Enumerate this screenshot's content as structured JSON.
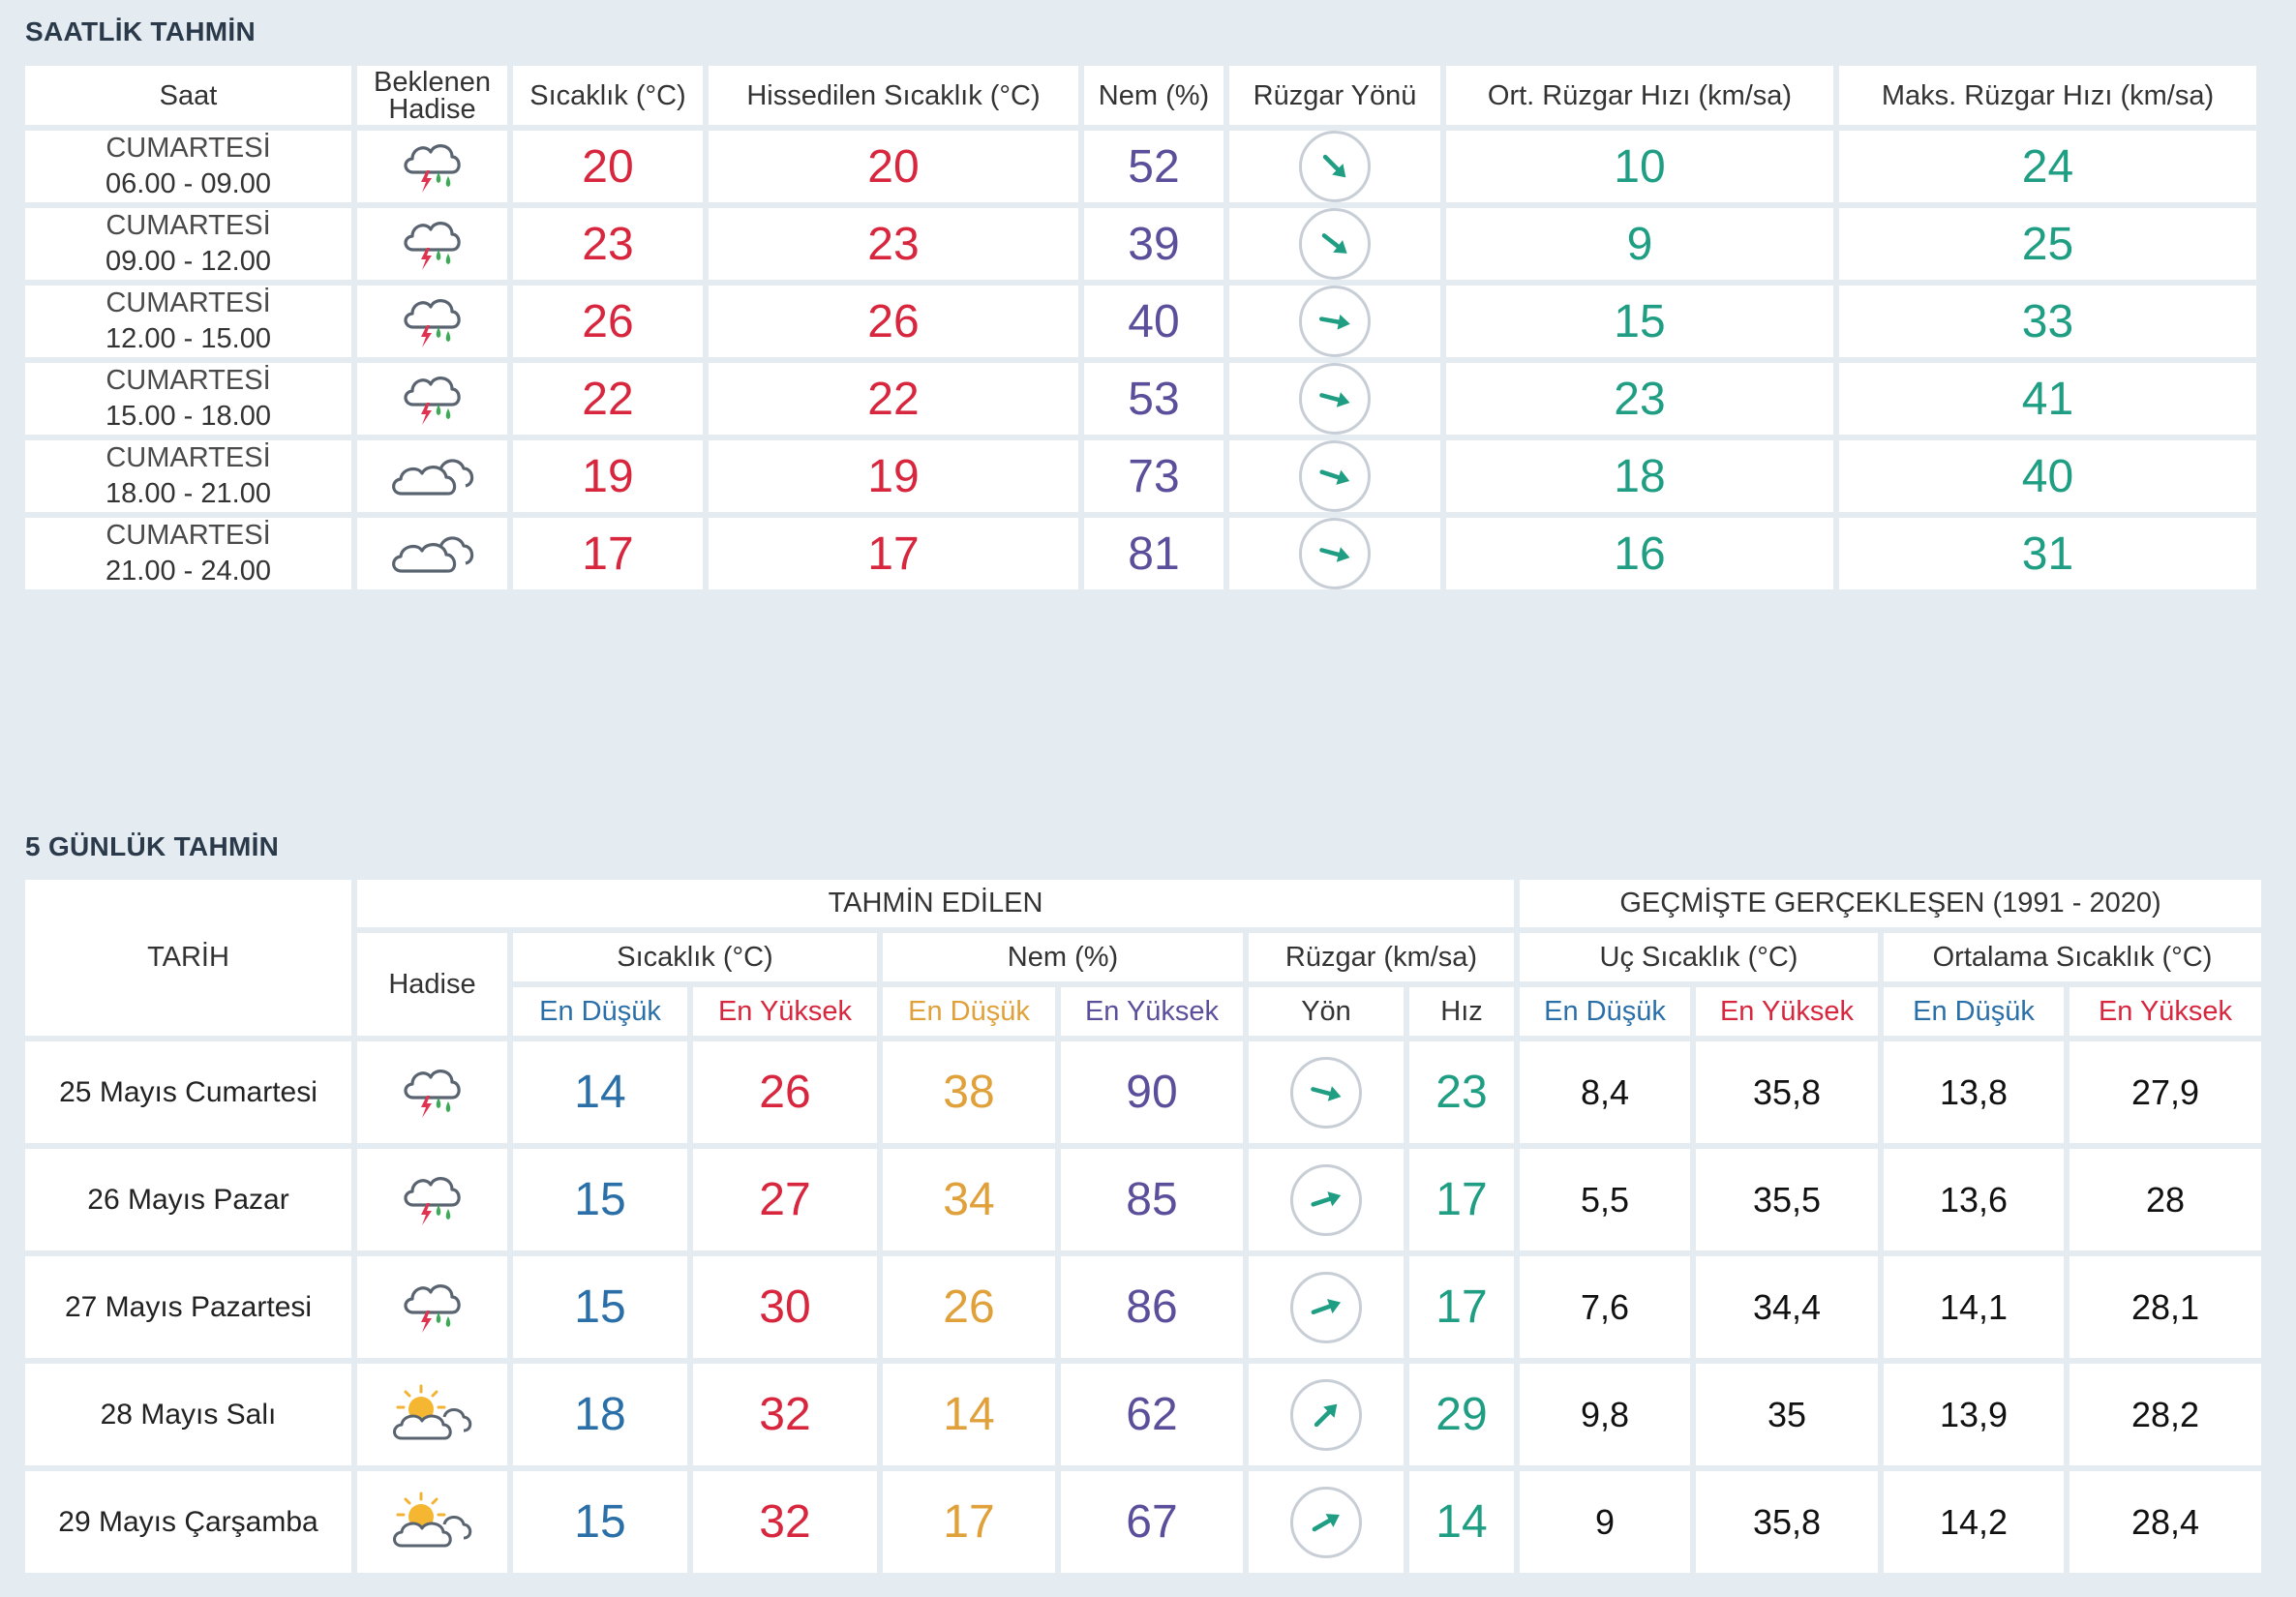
{
  "hourly": {
    "title": "SAATLİK TAHMİN",
    "headers": {
      "time": "Saat",
      "event": "Beklenen Hadise",
      "temp": "Sıcaklık (°C)",
      "feels": "Hissedilen Sıcaklık (°C)",
      "humidity": "Nem (%)",
      "wind_dir": "Rüzgar Yönü",
      "avg_wind": "Ort. Rüzgar Hızı (km/sa)",
      "max_wind": "Maks. Rüzgar Hızı (km/sa)"
    },
    "rows": [
      {
        "day": "CUMARTESİ",
        "time": "06.00 - 09.00",
        "icon": "thunderstorm-rain-icon",
        "temp": "20",
        "feels": "20",
        "humidity": "52",
        "wind_deg": 45,
        "avg": "10",
        "max": "24"
      },
      {
        "day": "CUMARTESİ",
        "time": "09.00 - 12.00",
        "icon": "thunderstorm-rain-icon",
        "temp": "23",
        "feels": "23",
        "humidity": "39",
        "wind_deg": 38,
        "avg": "9",
        "max": "25"
      },
      {
        "day": "CUMARTESİ",
        "time": "12.00 - 15.00",
        "icon": "thunderstorm-rain-icon",
        "temp": "26",
        "feels": "26",
        "humidity": "40",
        "wind_deg": 10,
        "avg": "15",
        "max": "33"
      },
      {
        "day": "CUMARTESİ",
        "time": "15.00 - 18.00",
        "icon": "thunderstorm-rain-icon",
        "temp": "22",
        "feels": "22",
        "humidity": "53",
        "wind_deg": 15,
        "avg": "23",
        "max": "41"
      },
      {
        "day": "CUMARTESİ",
        "time": "18.00 - 21.00",
        "icon": "cloudy-icon",
        "temp": "19",
        "feels": "19",
        "humidity": "73",
        "wind_deg": 18,
        "avg": "18",
        "max": "40"
      },
      {
        "day": "CUMARTESİ",
        "time": "21.00 - 24.00",
        "icon": "cloudy-icon",
        "temp": "17",
        "feels": "17",
        "humidity": "81",
        "wind_deg": 15,
        "avg": "16",
        "max": "31"
      }
    ]
  },
  "daily": {
    "title": "5 GÜNLÜK TAHMİN",
    "headers": {
      "date": "TARİH",
      "forecast_group": "TAHMİN EDİLEN",
      "history_group": "GEÇMİŞTE GERÇEKLEŞEN (1991 - 2020)",
      "event": "Hadise",
      "temp": "Sıcaklık (°C)",
      "humidity": "Nem (%)",
      "wind": "Rüzgar (km/sa)",
      "extreme_temp": "Uç Sıcaklık (°C)",
      "avg_temp": "Ortalama Sıcaklık (°C)",
      "min": "En Düşük",
      "max": "En Yüksek",
      "dir": "Yön",
      "speed": "Hız"
    },
    "rows": [
      {
        "date": "25 Mayıs Cumartesi",
        "icon": "thunderstorm-rain-icon",
        "tmin": "14",
        "tmax": "26",
        "hmin": "38",
        "hmax": "90",
        "wind_deg": 15,
        "speed": "23",
        "xmin": "8,4",
        "xmax": "35,8",
        "amin": "13,8",
        "amax": "27,9"
      },
      {
        "date": "26 Mayıs Pazar",
        "icon": "thunderstorm-rain-icon",
        "tmin": "15",
        "tmax": "27",
        "hmin": "34",
        "hmax": "85",
        "wind_deg": -18,
        "speed": "17",
        "xmin": "5,5",
        "xmax": "35,5",
        "amin": "13,6",
        "amax": "28"
      },
      {
        "date": "27 Mayıs Pazartesi",
        "icon": "thunderstorm-rain-icon",
        "tmin": "15",
        "tmax": "30",
        "hmin": "26",
        "hmax": "86",
        "wind_deg": -20,
        "speed": "17",
        "xmin": "7,6",
        "xmax": "34,4",
        "amin": "14,1",
        "amax": "28,1"
      },
      {
        "date": "28 Mayıs Salı",
        "icon": "partly-cloudy-sun-icon",
        "tmin": "18",
        "tmax": "32",
        "hmin": "14",
        "hmax": "62",
        "wind_deg": -45,
        "speed": "29",
        "xmin": "9,8",
        "xmax": "35",
        "amin": "13,9",
        "amax": "28,2"
      },
      {
        "date": "29 Mayıs Çarşamba",
        "icon": "partly-cloudy-sun-icon",
        "tmin": "15",
        "tmax": "32",
        "hmin": "17",
        "hmax": "67",
        "wind_deg": -30,
        "speed": "14",
        "xmin": "9",
        "xmax": "35,8",
        "amin": "14,2",
        "amax": "28,4"
      }
    ]
  },
  "colors": {
    "temp": "#d7263d",
    "humidity": "#5b4e9a",
    "wind": "#1f9e83",
    "min": "#2a6fa8",
    "hum_min": "#e0a03a"
  }
}
